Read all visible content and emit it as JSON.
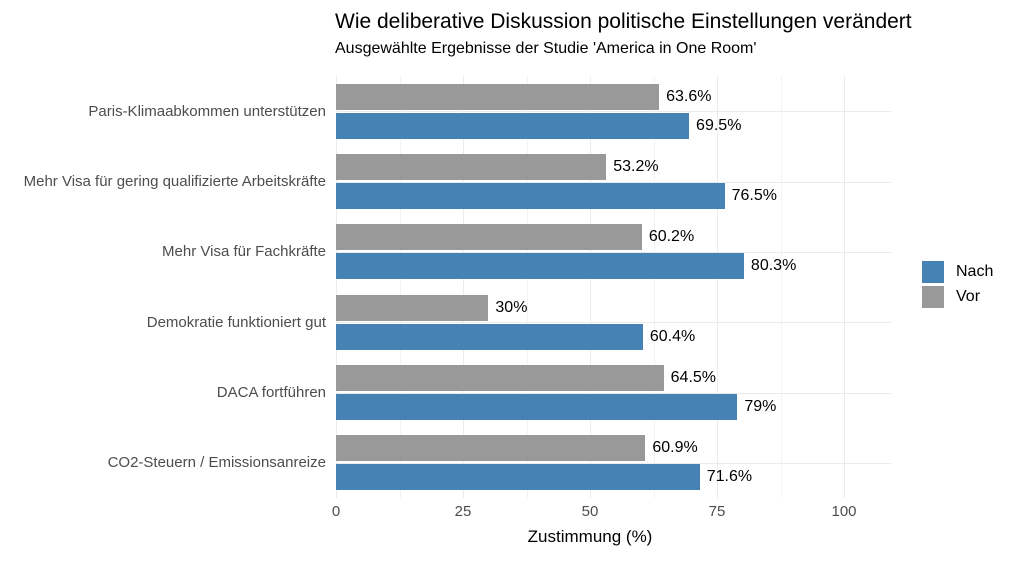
{
  "chart_data": {
    "type": "bar",
    "orientation": "horizontal",
    "title": "Wie deliberative Diskussion politische Einstellungen verändert",
    "subtitle": "Ausgewählte Ergebnisse der Studie 'America in One Room'",
    "xlabel": "Zustimmung (%)",
    "ylabel": "",
    "xlim": [
      0,
      109
    ],
    "x_ticks": [
      0,
      25,
      50,
      75,
      100
    ],
    "x_tick_labels": [
      "0",
      "25",
      "50",
      "75",
      "100"
    ],
    "x_minor_ticks": [
      12.5,
      37.5,
      62.5,
      87.5
    ],
    "grid": true,
    "legend_position": "right",
    "categories": [
      "Paris-Klimaabkommen unterstützen",
      "Mehr Visa für gering qualifizierte Arbeitskräfte",
      "Mehr Visa für Fachkräfte",
      "Demokratie funktioniert gut",
      "DACA fortführen",
      "CO2-Steuern / Emissionsanreize"
    ],
    "series": [
      {
        "name": "Nach",
        "color": "#4682B4",
        "values": [
          69.5,
          76.5,
          80.3,
          60.4,
          79,
          71.6
        ],
        "value_labels": [
          "69.5%",
          "76.5%",
          "80.3%",
          "60.4%",
          "79%",
          "71.6%"
        ]
      },
      {
        "name": "Vor",
        "color": "#999999",
        "values": [
          63.6,
          53.2,
          60.2,
          30,
          64.5,
          60.9
        ],
        "value_labels": [
          "63.6%",
          "53.2%",
          "60.2%",
          "30%",
          "64.5%",
          "60.9%"
        ]
      }
    ],
    "bar_order": [
      "Vor",
      "Nach"
    ]
  }
}
